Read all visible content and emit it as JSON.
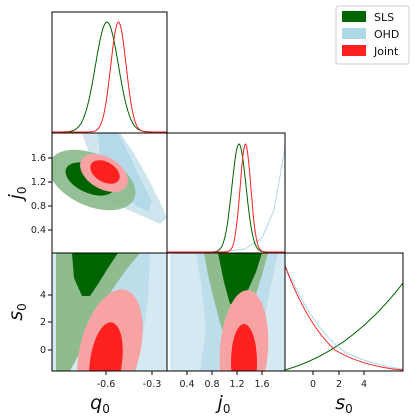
{
  "chart_data": {
    "type": "corner",
    "parameters": [
      {
        "key": "q0",
        "label": "q",
        "sub": "0"
      },
      {
        "key": "j0",
        "label": "j",
        "sub": "0"
      },
      {
        "key": "s0",
        "label": "s",
        "sub": "0"
      }
    ],
    "ticks": {
      "q0": [
        "-0.6",
        "-0.3"
      ],
      "j0": [
        "0.4",
        "0.8",
        "1.2",
        "1.6"
      ],
      "s0": [
        "0",
        "2",
        "4"
      ],
      "j0_left": [
        "0.4",
        "0.8",
        "1.2",
        "1.6"
      ],
      "s0_left": [
        "0",
        "2",
        "4"
      ]
    },
    "ranges": {
      "q0": [
        -1.1,
        -0.2
      ],
      "j0": [
        0.0,
        2.0
      ],
      "s0": [
        -2.0,
        7.0
      ]
    },
    "legend": {
      "placement": "top-right",
      "entries": [
        {
          "label": "SLS",
          "color": "#006400"
        },
        {
          "label": "OHD",
          "color": "#add8e6"
        },
        {
          "label": "Joint",
          "color": "#ff2020"
        }
      ]
    },
    "series": [
      {
        "name": "SLS",
        "color": "#006400",
        "q0": {
          "mean": -0.67,
          "sd": 0.09
        },
        "j0": {
          "mean": 1.22,
          "sd": 0.12
        }
      },
      {
        "name": "OHD",
        "color": "#add8e6"
      },
      {
        "name": "Joint",
        "color": "#ff2020",
        "q0": {
          "mean": -0.58,
          "sd": 0.06
        },
        "j0": {
          "mean": 1.33,
          "sd": 0.09
        }
      }
    ]
  }
}
